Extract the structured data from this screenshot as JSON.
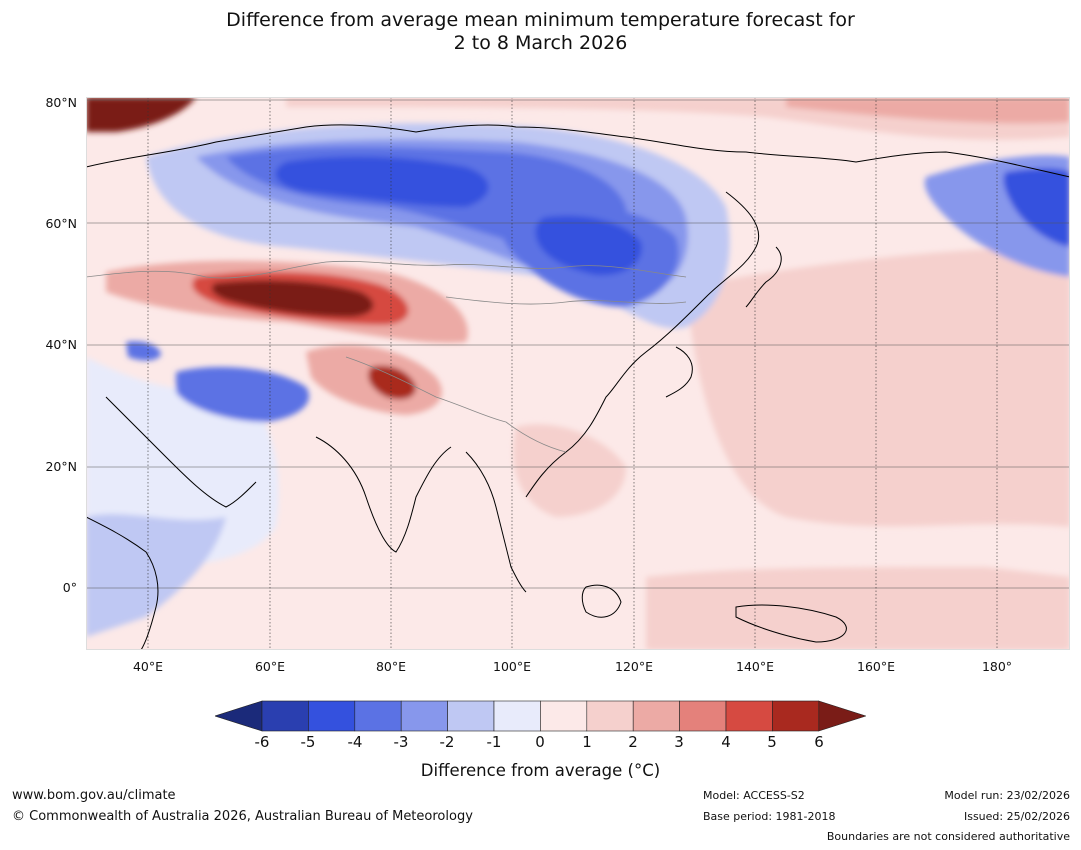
{
  "title": {
    "line1": "Difference from average mean minimum temperature forecast for",
    "line2": "2 to 8 March 2026"
  },
  "map": {
    "lat_labels": [
      "80°N",
      "60°N",
      "40°N",
      "20°N",
      "0°"
    ],
    "lon_labels": [
      "40°E",
      "60°E",
      "80°E",
      "100°E",
      "120°E",
      "140°E",
      "160°E",
      "180°"
    ],
    "anomaly_fields": [
      {
        "label": "Siberia cold anomaly",
        "lon": 95,
        "lat": 66,
        "value": -4
      },
      {
        "label": "Mongolia-Manchuria cold anomaly",
        "lon": 112,
        "lat": 52,
        "value": -4
      },
      {
        "label": "Arctic warm anomaly",
        "lon": 36,
        "lat": 79,
        "value": 6
      },
      {
        "label": "Kazakhstan warm anomaly",
        "lon": 72,
        "lat": 47,
        "value": 6
      },
      {
        "label": "Tibet warm anomaly",
        "lon": 82,
        "lat": 34,
        "value": 5
      },
      {
        "label": "Iran cold anomaly",
        "lon": 55,
        "lat": 33,
        "value": -3
      },
      {
        "label": "Alaska cold anomaly",
        "lon": 188,
        "lat": 63,
        "value": -4
      }
    ]
  },
  "colorbar": {
    "bins": [
      {
        "range": "< -6",
        "color": "#1b2a7a"
      },
      {
        "range": "-6 to -5",
        "color": "#2a3fb0"
      },
      {
        "range": "-5 to -4",
        "color": "#3451de"
      },
      {
        "range": "-4 to -3",
        "color": "#5b72e4"
      },
      {
        "range": "-3 to -2",
        "color": "#8797ec"
      },
      {
        "range": "-2 to -1",
        "color": "#bfc8f3"
      },
      {
        "range": "-1 to 0",
        "color": "#e8ebfb"
      },
      {
        "range": "0 to 1",
        "color": "#fce9e8"
      },
      {
        "range": "1 to 2",
        "color": "#f5d0cd"
      },
      {
        "range": "2 to 3",
        "color": "#ecaaa5"
      },
      {
        "range": "3 to 4",
        "color": "#e4817b"
      },
      {
        "range": "4 to 5",
        "color": "#d64a41"
      },
      {
        "range": "5 to 6",
        "color": "#a9291f"
      },
      {
        "range": "> 6",
        "color": "#7a1c17"
      }
    ],
    "ticks": [
      "-6",
      "-5",
      "-4",
      "-3",
      "-2",
      "-1",
      "0",
      "1",
      "2",
      "3",
      "4",
      "5",
      "6"
    ],
    "label": "Difference from average (°C)"
  },
  "footer": {
    "website": "www.bom.gov.au/climate",
    "copyright": "© Commonwealth of Australia 2026, Australian Bureau of Meteorology",
    "model": "Model: ACCESS-S2",
    "base_period": "Base period: 1981-2018",
    "model_run": "Model run: 23/02/2026",
    "issued": "Issued: 25/02/2026",
    "disclaimer": "Boundaries are not considered authoritative"
  }
}
